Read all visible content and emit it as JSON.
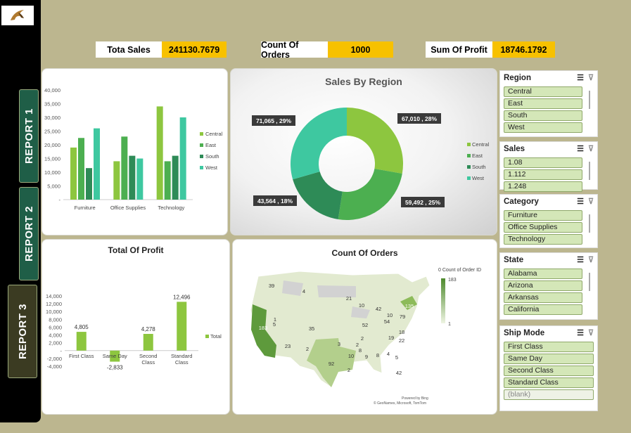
{
  "nav": {
    "reports": [
      "REPORT 1",
      "REPORT 2",
      "REPORT 3"
    ]
  },
  "kpis": [
    {
      "label": "Tota Sales",
      "value": "241130.7679"
    },
    {
      "label": "Count Of Orders",
      "value": "1000"
    },
    {
      "label": "Sum Of Profit",
      "value": "18746.1792"
    }
  ],
  "colors": {
    "central": "#8dc63f",
    "east": "#4caf50",
    "south": "#2e8b57",
    "west": "#3ec8a0",
    "kpi": "#f7c100"
  },
  "bar_chart": {
    "chart_data": {
      "type": "bar",
      "categories": [
        "Furniture",
        "Office Supplies",
        "Technology"
      ],
      "series": [
        {
          "name": "Central",
          "values": [
            19000,
            14000,
            34000
          ]
        },
        {
          "name": "East",
          "values": [
            22500,
            23000,
            14000
          ]
        },
        {
          "name": "South",
          "values": [
            11500,
            16000,
            16000
          ]
        },
        {
          "name": "West",
          "values": [
            26000,
            15000,
            30000
          ]
        }
      ],
      "ylim": [
        0,
        40000
      ],
      "yticks": [
        "40,000",
        "35,000",
        "30,000",
        "25,000",
        "20,000",
        "15,000",
        "10,000",
        "5,000",
        "-"
      ]
    }
  },
  "donut": {
    "title": "Sales  By Region",
    "chart_data": {
      "type": "pie",
      "labels": [
        "Central",
        "East",
        "South",
        "West"
      ],
      "values": [
        67010,
        59492,
        43564,
        71065
      ],
      "data_labels": [
        "67,010 , 28%",
        "59,492 , 25%",
        "43,564 , 18%",
        "71,065 , 29%"
      ]
    }
  },
  "profit": {
    "title": "Total Of Profit",
    "chart_data": {
      "type": "bar",
      "categories": [
        "First Class",
        "Same Day",
        "Second Class",
        "Standard Class"
      ],
      "values": [
        4805,
        -2833,
        4278,
        12496
      ],
      "data_labels": [
        "4,805",
        "-2,833",
        "4,278",
        "12,496"
      ],
      "series": [
        {
          "name": "Total"
        }
      ],
      "ylim": [
        -4000,
        14000
      ],
      "yticks": [
        "14,000",
        "12,000",
        "10,000",
        "8,000",
        "6,000",
        "4,000",
        "2,000",
        "-",
        "-2,000",
        "-4,000"
      ]
    }
  },
  "map": {
    "title": "Count Of Orders",
    "legend_title": "0 Count of Order ID",
    "legend_max": "183",
    "legend_min": "1",
    "labels": [
      "39",
      "4",
      "21",
      "10",
      "42",
      "135",
      "79",
      "1",
      "5",
      "35",
      "52",
      "54",
      "18",
      "10",
      "183",
      "23",
      "2",
      "2",
      "19",
      "22",
      "3",
      "2",
      "92",
      "9",
      "8",
      "4",
      "5",
      "42",
      "8",
      "10",
      "2"
    ],
    "credit1": "Powered by Bing",
    "credit2": "© GeoNames, Microsoft, TomTom"
  },
  "slicers": [
    {
      "title": "Region",
      "items": [
        "Central",
        "East",
        "South",
        "West"
      ]
    },
    {
      "title": "Sales",
      "items": [
        "1.08",
        "1.112",
        "1.248"
      ]
    },
    {
      "title": "Category",
      "items": [
        "Furniture",
        "Office Supplies",
        "Technology"
      ]
    },
    {
      "title": "State",
      "items": [
        "Alabama",
        "Arizona",
        "Arkansas",
        "California"
      ]
    },
    {
      "title": "Ship Mode",
      "items": [
        "First Class",
        "Same Day",
        "Second Class",
        "Standard Class",
        "(blank)"
      ]
    }
  ]
}
